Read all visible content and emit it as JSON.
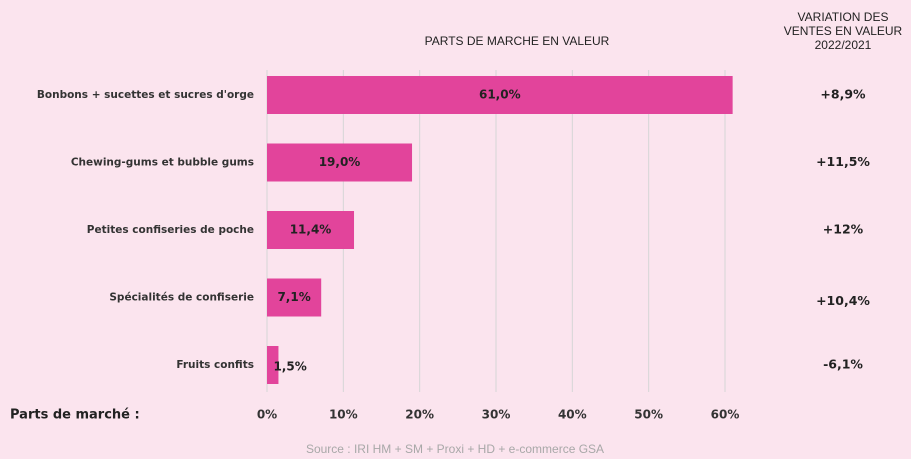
{
  "chart_data": {
    "type": "bar",
    "orientation": "horizontal",
    "title": "PARTS DE MARCHE EN VALEUR",
    "categories": [
      "Bonbons + sucettes et sucres d'orge",
      "Chewing-gums et bubble gums",
      "Petites confiseries de poche",
      "Spécialités de confiserie",
      "Fruits confits"
    ],
    "values": [
      61.0,
      19.0,
      11.4,
      7.1,
      1.5
    ],
    "value_labels": [
      "61,0%",
      "19,0%",
      "11,4%",
      "7,1%",
      "1,5%"
    ],
    "color": "#e2449b",
    "xlim": [
      0,
      60
    ],
    "xticks": [
      {
        "value": 0,
        "label": "0%"
      },
      {
        "value": 10,
        "label": "10%"
      },
      {
        "value": 20,
        "label": "20%"
      },
      {
        "value": 30,
        "label": "30%"
      },
      {
        "value": 40,
        "label": "40%"
      },
      {
        "value": 50,
        "label": "50%"
      },
      {
        "value": 60,
        "label": "60%"
      }
    ],
    "grid": true,
    "x_label": "Parts de marché :",
    "variation_title": [
      "VARIATION DES",
      "VENTES EN VALEUR",
      "2022/2021"
    ],
    "variation": [
      8.9,
      11.5,
      12,
      10.4,
      -6.1
    ],
    "variation_labels": [
      "+8,9%",
      "+11,5%",
      "+12%",
      "+10,4%",
      "-6,1%"
    ],
    "positive_color": "#2eaa4a",
    "negative_color": "#e0302a",
    "source": "Source : IRI HM + SM + Proxi + HD + e-commerce GSA"
  }
}
